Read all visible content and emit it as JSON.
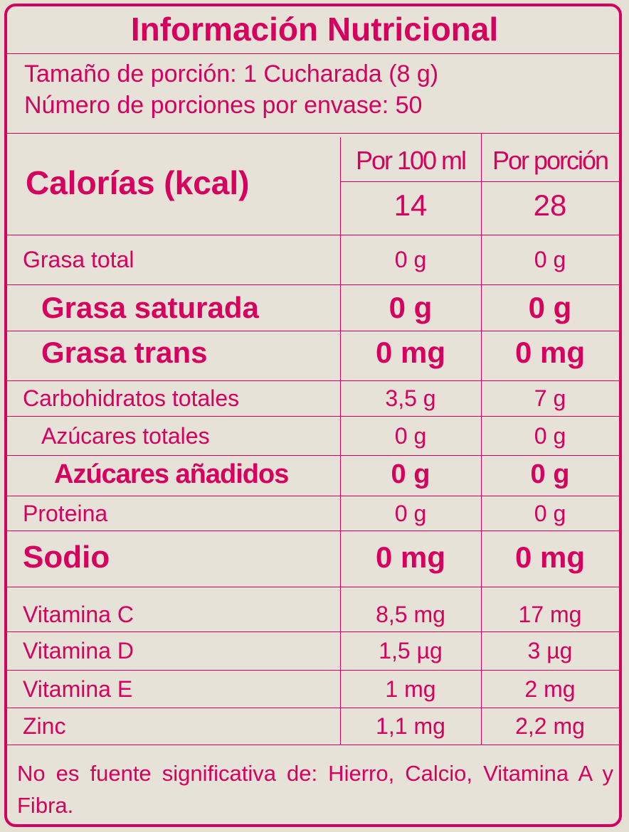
{
  "title": "Información Nutricional",
  "serving_size": "Tamaño de porción: 1 Cucharada (8 g)",
  "servings_per_container": "Número de porciones por envase: 50",
  "columns": {
    "per100": "Por 100 ml",
    "perportion": "Por porción"
  },
  "calories": {
    "label": "Calorías (kcal)",
    "per100": "14",
    "perportion": "28"
  },
  "rows": [
    {
      "label": "Grasa total",
      "per100": "0 g",
      "perportion": "0 g"
    },
    {
      "label": "Grasa saturada",
      "per100": "0 g",
      "perportion": "0 g"
    },
    {
      "label": "Grasa trans",
      "per100": "0 mg",
      "perportion": "0 mg"
    },
    {
      "label": "Carbohidratos totales",
      "per100": "3,5 g",
      "perportion": "7 g"
    },
    {
      "label": "Azúcares totales",
      "per100": "0 g",
      "perportion": "0 g"
    },
    {
      "label": "Azúcares añadidos",
      "per100": "0 g",
      "perportion": "0 g"
    },
    {
      "label": "Proteina",
      "per100": "0 g",
      "perportion": "0 g"
    },
    {
      "label": "Sodio",
      "per100": "0 mg",
      "perportion": "0 mg"
    },
    {
      "label": "Vitamina C",
      "per100": "8,5 mg",
      "perportion": "17 mg"
    },
    {
      "label": "Vitamina D",
      "per100": "1,5 µg",
      "perportion": "3 µg"
    },
    {
      "label": "Vitamina E",
      "per100": "1 mg",
      "perportion": "2 mg"
    },
    {
      "label": "Zinc",
      "per100": "1,1 mg",
      "perportion": "2,2 mg"
    }
  ],
  "footnote": "No es fuente significativa de: Hierro, Calcio, Vitamina A y Fibra.",
  "colors": {
    "accent": "#d6005f",
    "background": "#e6e2d7"
  }
}
